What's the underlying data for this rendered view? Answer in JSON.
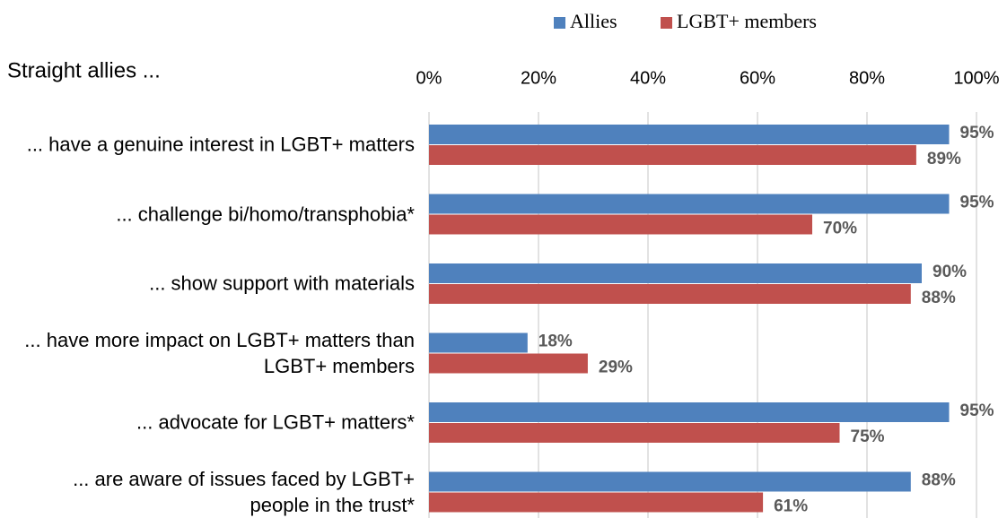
{
  "chart_data": {
    "type": "bar",
    "orientation": "horizontal",
    "y_label": "Straight allies ...",
    "categories": [
      "... have a genuine interest in LGBT+ matters",
      "... challenge bi/homo/transphobia*",
      "... show support with materials",
      "... have more impact on LGBT+ matters than LGBT+ members",
      "... advocate for LGBT+ matters*",
      "... are aware of issues faced by LGBT+ people in the trust*"
    ],
    "series": [
      {
        "name": "Allies",
        "color": "#4f81bd",
        "values": [
          95,
          95,
          90,
          18,
          95,
          88
        ],
        "value_labels": [
          "95%",
          "95%",
          "90%",
          "18%",
          "95%",
          "88%"
        ]
      },
      {
        "name": "LGBT+ members",
        "color": "#c0504d",
        "values": [
          89,
          70,
          88,
          29,
          75,
          61
        ],
        "value_labels": [
          "89%",
          "70%",
          "88%",
          "29%",
          "75%",
          "61%"
        ]
      }
    ],
    "xlim": [
      0,
      100
    ],
    "xticks": [
      {
        "value": 0,
        "label": "0%"
      },
      {
        "value": 20,
        "label": "20%"
      },
      {
        "value": 40,
        "label": "40%"
      },
      {
        "value": 60,
        "label": "60%"
      },
      {
        "value": 80,
        "label": "80%"
      },
      {
        "value": 100,
        "label": "100%"
      }
    ],
    "grid": true,
    "legend": "top"
  }
}
